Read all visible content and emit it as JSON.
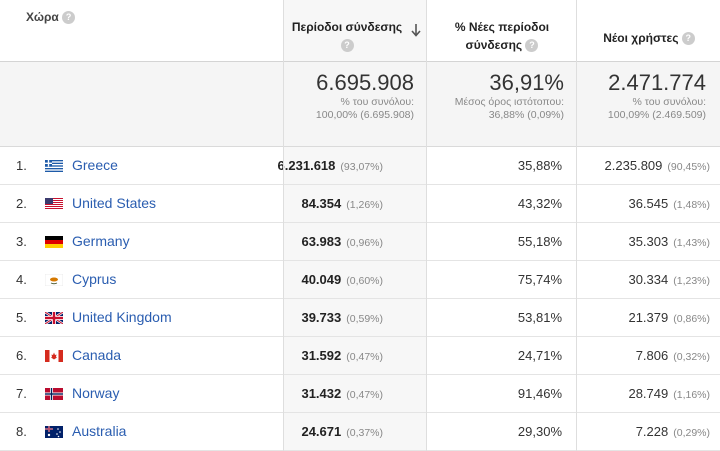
{
  "header": {
    "country": "Χώρα",
    "sessions": [
      "Περίοδοι σύνδεσης"
    ],
    "new_sessions": [
      "% Νέες περίοδοι",
      "σύνδεσης"
    ],
    "new_users": [
      "Νέοι χρήστες"
    ],
    "help_glyph": "?"
  },
  "summary": {
    "sessions": {
      "value": "6.695.908",
      "line1": "% του συνόλου:",
      "line2": "100,00% (6.695.908)"
    },
    "new_sessions": {
      "value": "36,91%",
      "line1": "Μέσος όρος ιστότοπου:",
      "line2": "36,88% (0,09%)"
    },
    "new_users": {
      "value": "2.471.774",
      "line1": "% του συνόλου:",
      "line2": "100,09% (2.469.509)"
    }
  },
  "rows": [
    {
      "idx": "1.",
      "country": "Greece",
      "flag": "gr",
      "sessions": "6.231.618",
      "sessions_pct": "(93,07%)",
      "new_sessions": "35,88%",
      "new_users": "2.235.809",
      "new_users_pct": "(90,45%)"
    },
    {
      "idx": "2.",
      "country": "United States",
      "flag": "us",
      "sessions": "84.354",
      "sessions_pct": "(1,26%)",
      "new_sessions": "43,32%",
      "new_users": "36.545",
      "new_users_pct": "(1,48%)"
    },
    {
      "idx": "3.",
      "country": "Germany",
      "flag": "de",
      "sessions": "63.983",
      "sessions_pct": "(0,96%)",
      "new_sessions": "55,18%",
      "new_users": "35.303",
      "new_users_pct": "(1,43%)"
    },
    {
      "idx": "4.",
      "country": "Cyprus",
      "flag": "cy",
      "sessions": "40.049",
      "sessions_pct": "(0,60%)",
      "new_sessions": "75,74%",
      "new_users": "30.334",
      "new_users_pct": "(1,23%)"
    },
    {
      "idx": "5.",
      "country": "United Kingdom",
      "flag": "gb",
      "sessions": "39.733",
      "sessions_pct": "(0,59%)",
      "new_sessions": "53,81%",
      "new_users": "21.379",
      "new_users_pct": "(0,86%)"
    },
    {
      "idx": "6.",
      "country": "Canada",
      "flag": "ca",
      "sessions": "31.592",
      "sessions_pct": "(0,47%)",
      "new_sessions": "24,71%",
      "new_users": "7.806",
      "new_users_pct": "(0,32%)"
    },
    {
      "idx": "7.",
      "country": "Norway",
      "flag": "no",
      "sessions": "31.432",
      "sessions_pct": "(0,47%)",
      "new_sessions": "91,46%",
      "new_users": "28.749",
      "new_users_pct": "(1,16%)"
    },
    {
      "idx": "8.",
      "country": "Australia",
      "flag": "au",
      "sessions": "24.671",
      "sessions_pct": "(0,37%)",
      "new_sessions": "29,30%",
      "new_users": "7.228",
      "new_users_pct": "(0,29%)"
    }
  ],
  "colors": {
    "link": "#2a5db0",
    "sorted_column_bg": "#f7f7f7",
    "summary_bg": "#f5f5f5"
  }
}
